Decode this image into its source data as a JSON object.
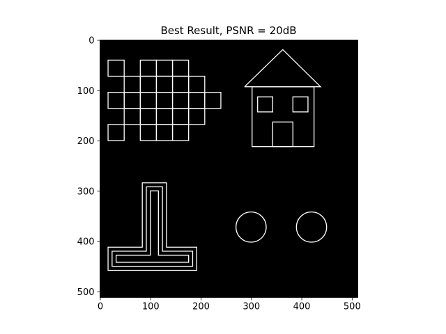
{
  "chart_data": {
    "type": "image",
    "title": "Best Result, PSNR = 20dB",
    "xlabel": "",
    "ylabel": "",
    "xlim": [
      0,
      511
    ],
    "ylim": [
      511,
      0
    ],
    "x_ticks": [
      0,
      100,
      200,
      300,
      400,
      500
    ],
    "y_ticks": [
      0,
      100,
      200,
      300,
      400,
      500
    ],
    "background_color": "#000000",
    "foreground_color": "#ffffff",
    "grid": false,
    "image_content": {
      "grid_shape": {
        "cell_size": 32,
        "rows": [
          {
            "y": [
              40,
              72
            ],
            "cells_x": [
              [
                16,
                48
              ],
              [
                80,
                112
              ],
              [
                112,
                144
              ],
              [
                144,
                176
              ]
            ]
          },
          {
            "y": [
              72,
              104
            ],
            "cells_x": [
              [
                48,
                80
              ],
              [
                80,
                112
              ],
              [
                112,
                144
              ],
              [
                144,
                176
              ],
              [
                176,
                208
              ]
            ]
          },
          {
            "y": [
              104,
              136
            ],
            "cells_x": [
              [
                16,
                48
              ],
              [
                48,
                80
              ],
              [
                80,
                112
              ],
              [
                112,
                144
              ],
              [
                144,
                176
              ],
              [
                176,
                208
              ],
              [
                208,
                240
              ]
            ]
          },
          {
            "y": [
              136,
              168
            ],
            "cells_x": [
              [
                48,
                80
              ],
              [
                80,
                112
              ],
              [
                112,
                144
              ],
              [
                144,
                176
              ],
              [
                176,
                208
              ]
            ]
          },
          {
            "y": [
              168,
              200
            ],
            "cells_x": [
              [
                16,
                48
              ],
              [
                80,
                112
              ],
              [
                112,
                144
              ],
              [
                144,
                176
              ]
            ]
          }
        ]
      },
      "house": {
        "roof": [
          [
            287,
            93
          ],
          [
            363,
            19
          ],
          [
            438,
            93
          ]
        ],
        "walls": [
          [
            302,
            93
          ],
          [
            425,
            212
          ]
        ],
        "windows": [
          [
            [
              313,
              113
            ],
            [
              343,
              143
            ]
          ],
          [
            [
              383,
              113
            ],
            [
              413,
              143
            ]
          ]
        ],
        "door": [
          [
            343,
            163
          ],
          [
            383,
            212
          ]
        ]
      },
      "t_shape": {
        "outlines": [
          [
            [
              84,
              284
            ],
            [
              132,
              284
            ],
            [
              132,
              412
            ],
            [
              192,
              412
            ],
            [
              192,
              458
            ],
            [
              16,
              458
            ],
            [
              16,
              412
            ],
            [
              84,
              412
            ]
          ],
          [
            [
              92,
              292
            ],
            [
              124,
              292
            ],
            [
              124,
              420
            ],
            [
              184,
              420
            ],
            [
              184,
              450
            ],
            [
              24,
              450
            ],
            [
              24,
              420
            ],
            [
              92,
              420
            ]
          ],
          [
            [
              100,
              300
            ],
            [
              116,
              300
            ],
            [
              116,
              428
            ],
            [
              176,
              428
            ],
            [
              176,
              442
            ],
            [
              32,
              442
            ],
            [
              32,
              428
            ],
            [
              100,
              428
            ]
          ]
        ]
      },
      "infinity": {
        "left_center": [
          300,
          372
        ],
        "right_center": [
          420,
          372
        ],
        "radii": [
          30,
          59
        ]
      }
    }
  }
}
